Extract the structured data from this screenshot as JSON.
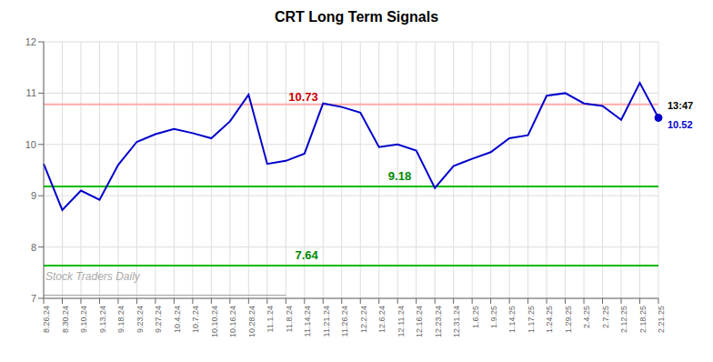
{
  "chart_data": {
    "type": "line",
    "title": "CRT Long Term Signals",
    "categories": [
      "8.26.24",
      "8.30.24",
      "9.10.24",
      "9.13.24",
      "9.18.24",
      "9.23.24",
      "9.27.24",
      "10.4.24",
      "10.7.24",
      "10.10.24",
      "10.16.24",
      "10.28.24",
      "11.1.24",
      "11.8.24",
      "11.14.24",
      "11.21.24",
      "11.26.24",
      "12.2.24",
      "12.6.24",
      "12.11.24",
      "12.16.24",
      "12.23.24",
      "12.31.24",
      "1.6.25",
      "1.9.25",
      "1.14.25",
      "1.17.25",
      "1.24.25",
      "1.29.25",
      "2.4.25",
      "2.7.25",
      "2.12.25",
      "2.18.25",
      "2.21.25"
    ],
    "values": [
      9.62,
      8.72,
      9.1,
      8.92,
      9.6,
      10.05,
      10.2,
      10.3,
      10.22,
      10.12,
      10.45,
      10.97,
      9.62,
      9.68,
      9.82,
      10.8,
      10.73,
      10.62,
      9.95,
      10.0,
      9.88,
      9.15,
      9.58,
      9.72,
      9.85,
      10.12,
      10.18,
      10.95,
      11.0,
      10.8,
      10.75,
      10.48,
      11.2,
      10.52
    ],
    "color": "#0000cc",
    "ylim": [
      7,
      12
    ],
    "yticks": [
      7,
      8,
      9,
      10,
      11,
      12
    ],
    "grid": true,
    "hlines": [
      {
        "value": 10.78,
        "color": "#ffaaaa"
      },
      {
        "value": 9.18,
        "color": "#00bb00"
      },
      {
        "value": 7.64,
        "color": "#00bb00"
      }
    ],
    "annotations": [
      {
        "text": "10.73",
        "x": "11.26.24",
        "y": 10.73,
        "color": "#cc0000"
      },
      {
        "text": "9.18",
        "x": "12.23.24",
        "y": 9.18,
        "color": "#008800"
      },
      {
        "text": "7.64",
        "x": "11.26.24",
        "y": 7.64,
        "color": "#008800"
      }
    ],
    "last_point": {
      "dot_color": "#0000cc",
      "time_label": "13:47",
      "time_color": "#000000",
      "price_label": "10.52",
      "price_color": "#0000cc"
    },
    "watermark": {
      "text": "Stock Traders Daily",
      "color": "#aaaaaa"
    },
    "watermark_line": {
      "value": 7.06,
      "color": "#999999"
    }
  }
}
